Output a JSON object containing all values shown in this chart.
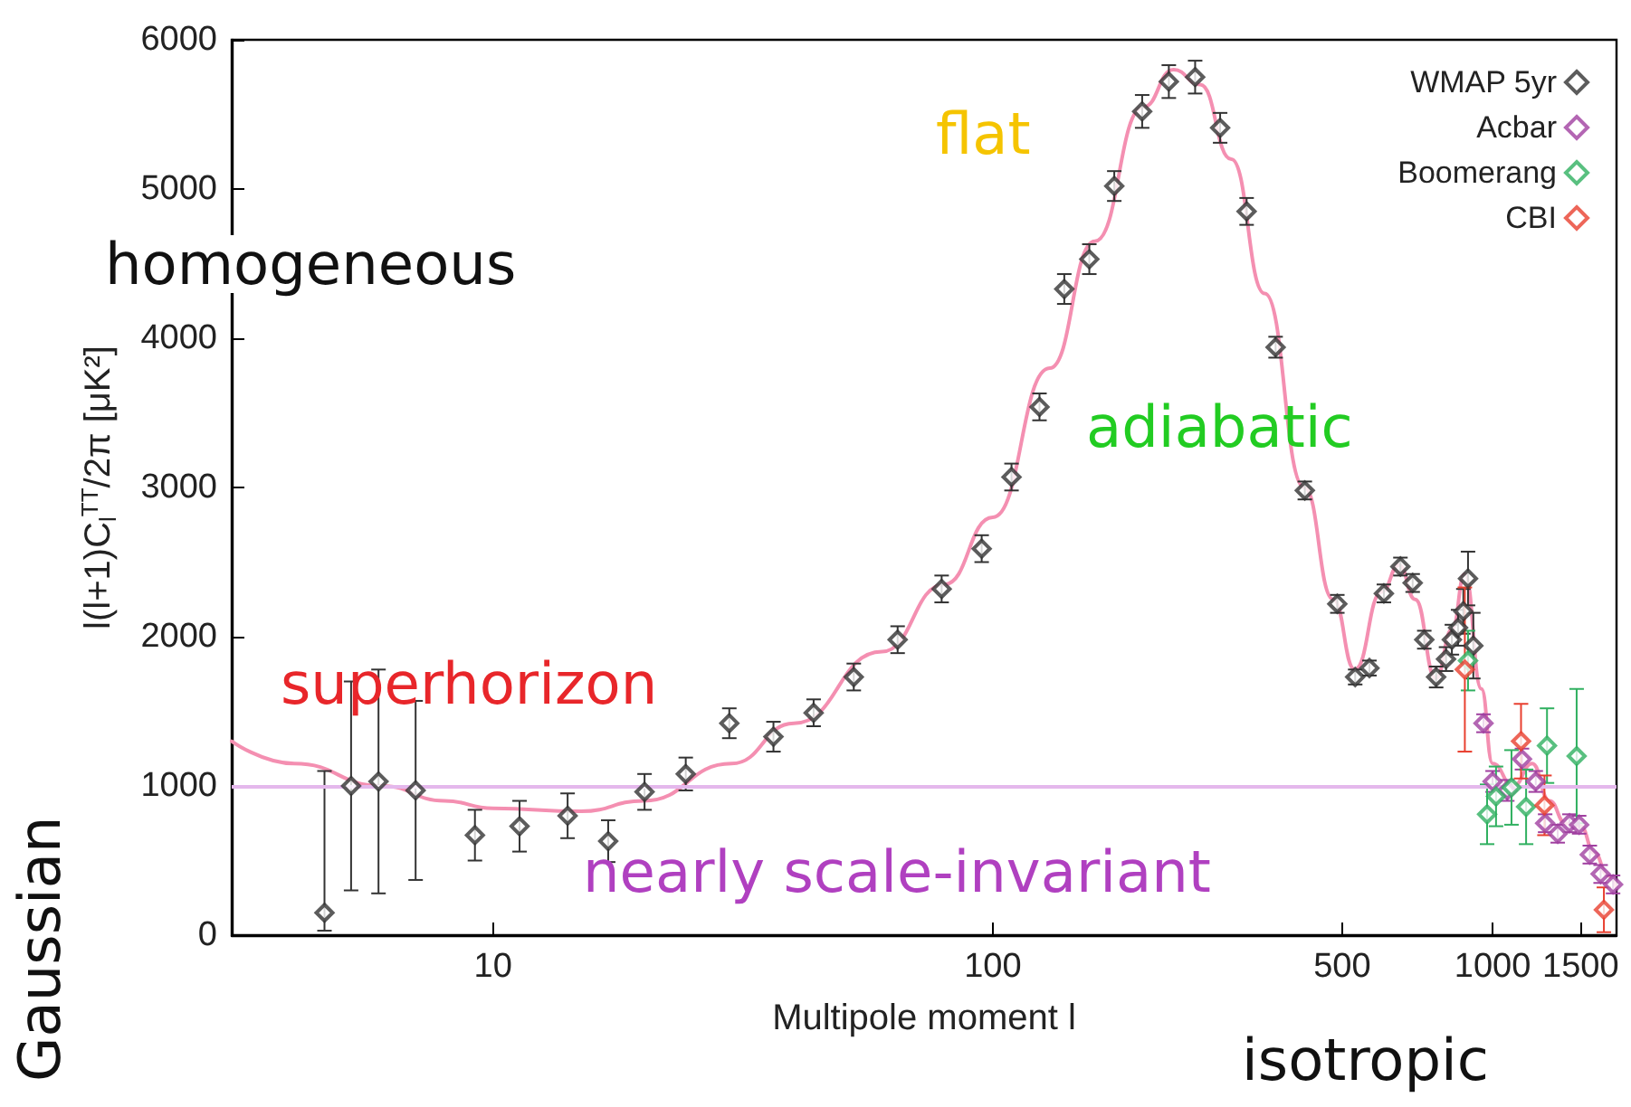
{
  "chart_data": {
    "type": "scatter",
    "xlabel": "Multipole moment l",
    "ylabel": "l(l+1)C$_{l}$$^{TT}$/2π [μK²]",
    "log": "x",
    "xlim": [
      3,
      1770
    ],
    "xticks": [
      10,
      100,
      500,
      1000,
      1500
    ],
    "ylim": [
      0,
      6000
    ],
    "yticks": [
      0,
      1000,
      2000,
      3000,
      4000,
      5000,
      6000
    ],
    "grid": false,
    "legend": "top right",
    "marker": "diamond",
    "ref_lines": [
      {
        "axis": "y",
        "value": 1000,
        "label": null,
        "color": "#e4b8ec"
      }
    ],
    "annotations": [
      "homogeneous",
      "flat",
      "adiabatic",
      "superhorizon",
      "nearly scale-invariant",
      "Gaussian",
      "isotropic"
    ],
    "series": [
      {
        "name": "WMAP 5yr",
        "color": "#333333",
        "x": [
          4.6,
          5.2,
          5.9,
          7,
          9.2,
          11.3,
          14.1,
          17,
          20.1,
          24.3,
          29.7,
          36.4,
          43.8,
          52.7,
          64.5,
          79,
          95,
          109,
          124,
          139,
          156,
          175,
          199,
          225,
          254,
          285,
          322,
          368,
          421,
          489,
          531,
          567,
          606,
          654,
          692,
          730,
          771,
          807,
          829,
          853,
          874,
          893,
          915
        ],
        "values": [
          150,
          1000,
          1030,
          970,
          670,
          730,
          800,
          630,
          960,
          1080,
          1420,
          1330,
          1490,
          1730,
          1980,
          2320,
          2590,
          3070,
          3540,
          4330,
          4530,
          5020,
          5520,
          5720,
          5750,
          5410,
          4850,
          3940,
          2980,
          2220,
          1730,
          1790,
          2290,
          2470,
          2360,
          1980,
          1730,
          1850,
          1980,
          2060,
          2170,
          2390,
          1940
        ],
        "errors": [
          [
            30,
            1100
          ],
          700,
          750,
          600,
          170,
          170,
          150,
          140,
          120,
          110,
          100,
          100,
          90,
          90,
          90,
          90,
          90,
          90,
          90,
          100,
          100,
          100,
          110,
          110,
          110,
          100,
          90,
          70,
          60,
          60,
          50,
          50,
          60,
          60,
          60,
          60,
          70,
          80,
          100,
          120,
          150,
          180,
          220
        ]
      },
      {
        "name": "Acbar",
        "color": "#a040a0",
        "x": [
          959,
          1000,
          1070,
          1145,
          1220,
          1274,
          1350,
          1425,
          1490,
          1565,
          1645,
          1742
        ],
        "values": [
          1420,
          1030,
          970,
          1180,
          1030,
          750,
          680,
          750,
          740,
          540,
          410,
          340
        ],
        "errors": [
          60,
          70,
          70,
          70,
          70,
          60,
          60,
          60,
          60,
          60,
          60,
          60
        ]
      },
      {
        "name": "Boomerang",
        "color": "#30b060",
        "x": [
          893,
          975,
          1016,
          1091,
          1167,
          1285,
          1473
        ],
        "values": [
          1840,
          810,
          930,
          990,
          860,
          1270,
          1200
        ],
        "errors": [
          200,
          200,
          200,
          250,
          250,
          250,
          450
        ]
      },
      {
        "name": "CBI",
        "color": "#e84030",
        "x": [
          880,
          1140,
          1270,
          1670
        ],
        "values": [
          1780,
          1300,
          870,
          170
        ],
        "errors": [
          550,
          250,
          200,
          150
        ]
      },
      {
        "type": "line",
        "color": "#f48fb1",
        "line_style": "solid",
        "marker": "none",
        "x": [
          3,
          4,
          6,
          8,
          10,
          15,
          20,
          30,
          40,
          60,
          80,
          100,
          130,
          160,
          200,
          230,
          260,
          300,
          350,
          420,
          480,
          530,
          600,
          650,
          700,
          770,
          830,
          880,
          950,
          1000,
          1100,
          1200,
          1300,
          1400,
          1500,
          1600,
          1700,
          1770
        ],
        "values": [
          1300,
          1150,
          1000,
          900,
          850,
          830,
          900,
          1150,
          1420,
          1900,
          2350,
          2800,
          3800,
          4650,
          5550,
          5800,
          5700,
          5200,
          4300,
          3000,
          2250,
          1780,
          2300,
          2480,
          2250,
          1720,
          2050,
          2420,
          1650,
          1150,
          1000,
          1150,
          900,
          750,
          730,
          550,
          400,
          320
        ]
      }
    ]
  }
}
